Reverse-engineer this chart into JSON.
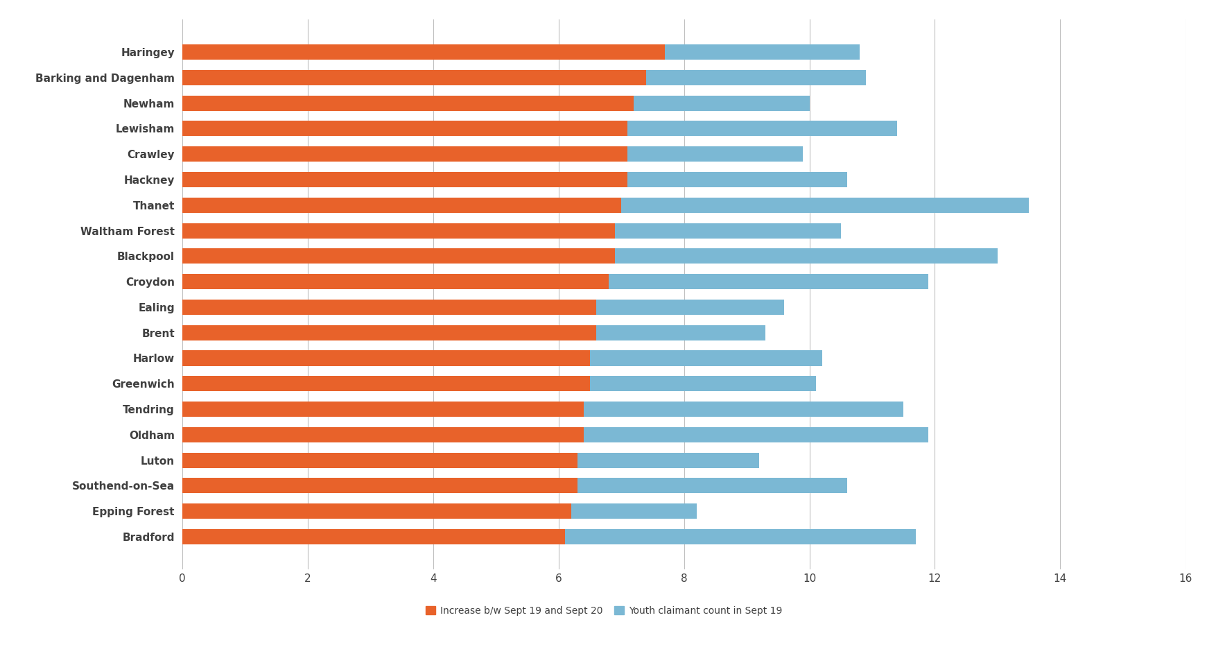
{
  "categories": [
    "Haringey",
    "Barking and Dagenham",
    "Newham",
    "Lewisham",
    "Crawley",
    "Hackney",
    "Thanet",
    "Waltham Forest",
    "Blackpool",
    "Croydon",
    "Ealing",
    "Brent",
    "Harlow",
    "Greenwich",
    "Tendring",
    "Oldham",
    "Luton",
    "Southend-on-Sea",
    "Epping Forest",
    "Bradford"
  ],
  "increase_values": [
    7.7,
    7.4,
    7.2,
    7.1,
    7.1,
    7.1,
    7.0,
    6.9,
    6.9,
    6.8,
    6.6,
    6.6,
    6.5,
    6.5,
    6.4,
    6.4,
    6.3,
    6.3,
    6.2,
    6.1
  ],
  "youth_claimant_values": [
    3.1,
    3.5,
    2.8,
    4.3,
    2.8,
    3.5,
    6.5,
    3.6,
    6.1,
    5.1,
    3.0,
    2.7,
    3.7,
    3.6,
    5.1,
    5.5,
    2.9,
    4.3,
    2.0,
    5.6
  ],
  "orange_color": "#E8622A",
  "blue_color": "#7BB8D4",
  "background_color": "#FFFFFF",
  "gridline_color": "#BFBFBF",
  "xlim": [
    0,
    16
  ],
  "xticks": [
    0,
    2,
    4,
    6,
    8,
    10,
    12,
    14,
    16
  ],
  "legend_labels": [
    "Increase b/w Sept 19 and Sept 20",
    "Youth claimant count in Sept 19"
  ],
  "bar_height": 0.6,
  "figsize": [
    17.54,
    9.33
  ],
  "dpi": 100,
  "label_fontsize": 11,
  "tick_fontsize": 11,
  "legend_fontsize": 10,
  "label_color": "#404040",
  "label_fontweight": "bold"
}
